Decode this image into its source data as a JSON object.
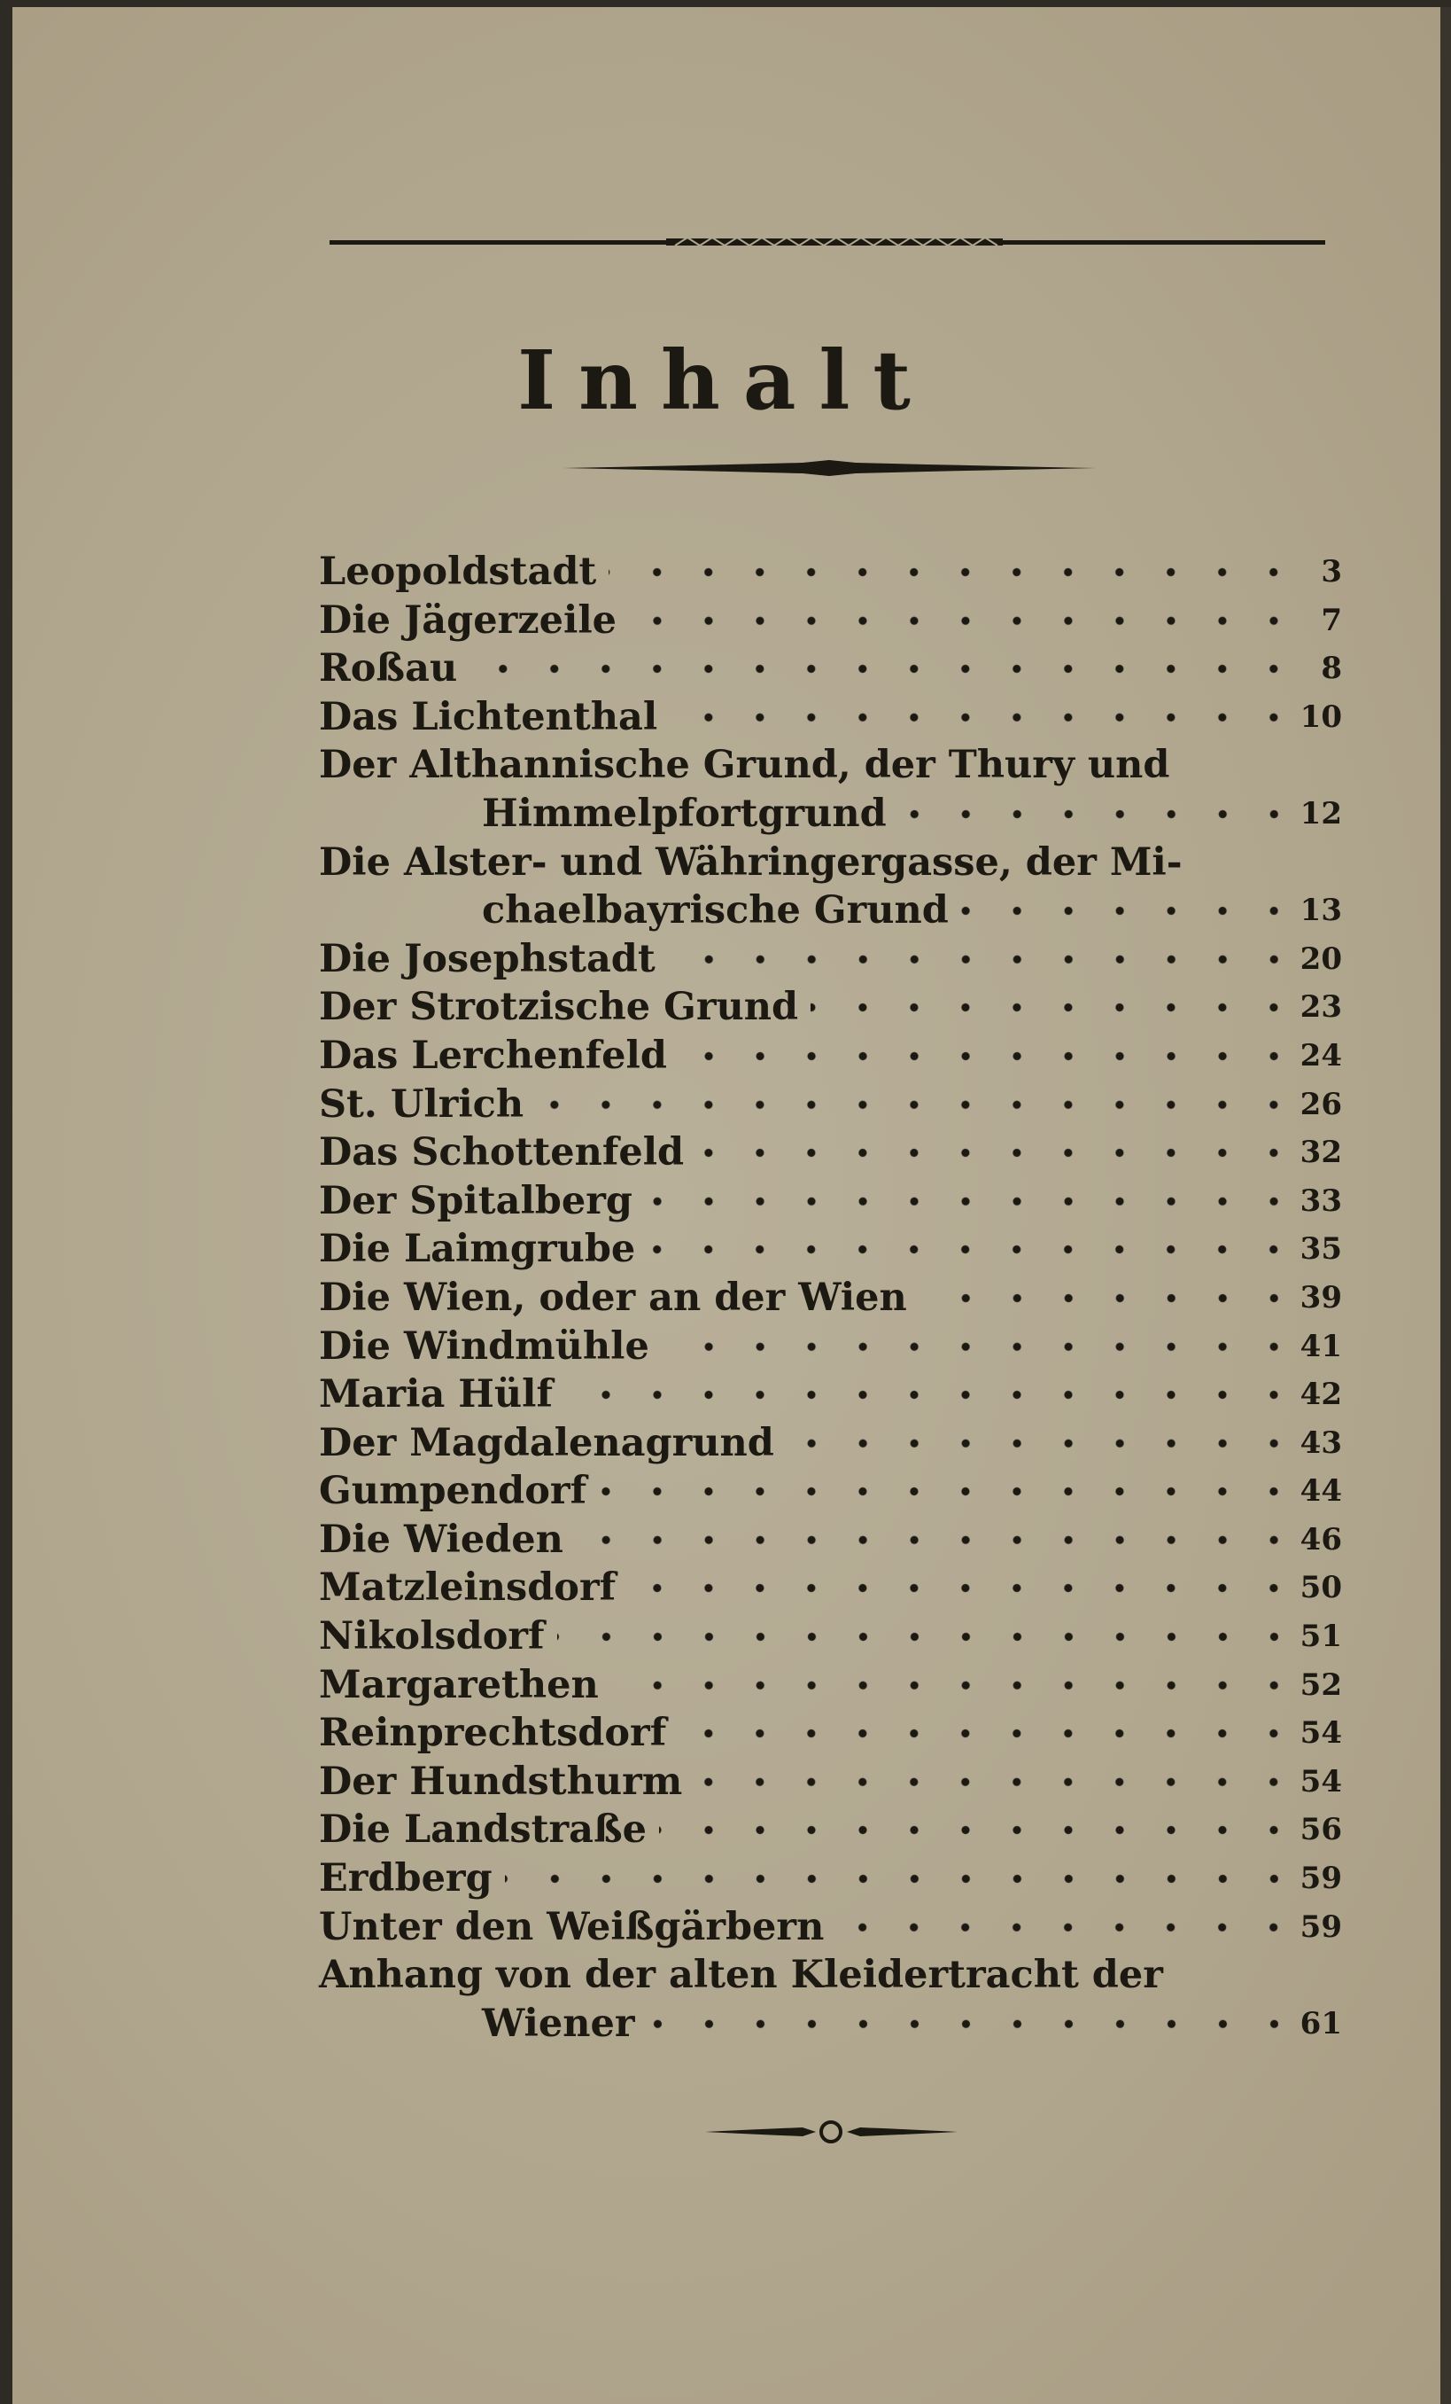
{
  "title": "Inhalt",
  "entries": [
    {
      "lines": [
        "Leopoldstadt"
      ],
      "page": "3"
    },
    {
      "lines": [
        "Die Jägerzeile"
      ],
      "page": "7"
    },
    {
      "lines": [
        "Roßau"
      ],
      "page": "8"
    },
    {
      "lines": [
        "Das Lichtenthal"
      ],
      "page": "10"
    },
    {
      "lines": [
        "Der Althannische Grund, der Thury und",
        "Himmelpfortgrund"
      ],
      "page": "12"
    },
    {
      "lines": [
        "Die Alster- und Währingergasse, der Mi-",
        "chaelbayrische Grund"
      ],
      "page": "13"
    },
    {
      "lines": [
        "Die Josephstadt"
      ],
      "page": "20"
    },
    {
      "lines": [
        "Der Strotzische Grund"
      ],
      "page": "23"
    },
    {
      "lines": [
        "Das Lerchenfeld"
      ],
      "page": "24"
    },
    {
      "lines": [
        "St. Ulrich"
      ],
      "page": "26"
    },
    {
      "lines": [
        "Das Schottenfeld"
      ],
      "page": "32"
    },
    {
      "lines": [
        "Der Spitalberg"
      ],
      "page": "33"
    },
    {
      "lines": [
        "Die Laimgrube"
      ],
      "page": "35"
    },
    {
      "lines": [
        "Die Wien, oder an der Wien"
      ],
      "page": "39"
    },
    {
      "lines": [
        "Die Windmühle"
      ],
      "page": "41"
    },
    {
      "lines": [
        "Maria Hülf"
      ],
      "page": "42"
    },
    {
      "lines": [
        "Der Magdalenagrund"
      ],
      "page": "43"
    },
    {
      "lines": [
        "Gumpendorf"
      ],
      "page": "44"
    },
    {
      "lines": [
        "Die Wieden"
      ],
      "page": "46"
    },
    {
      "lines": [
        "Matzleinsdorf"
      ],
      "page": "50"
    },
    {
      "lines": [
        "Nikolsdorf"
      ],
      "page": "51"
    },
    {
      "lines": [
        "Margarethen"
      ],
      "page": "52"
    },
    {
      "lines": [
        "Reinprechtsdorf"
      ],
      "page": "54"
    },
    {
      "lines": [
        "Der Hundsthurm"
      ],
      "page": "54"
    },
    {
      "lines": [
        "Die Landstraße"
      ],
      "page": "56"
    },
    {
      "lines": [
        "Erdberg"
      ],
      "page": "59"
    },
    {
      "lines": [
        "Unter den Weißgärbern"
      ],
      "page": "59"
    },
    {
      "lines": [
        "Anhang von der alten Kleidertracht der",
        "Wiener"
      ],
      "page": "61"
    }
  ]
}
